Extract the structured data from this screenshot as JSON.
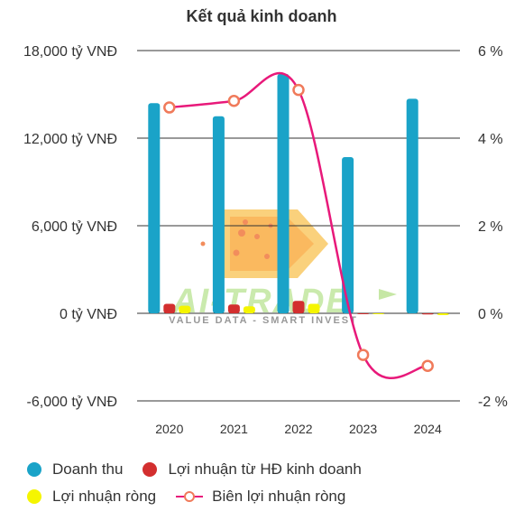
{
  "chart_data": {
    "type": "bar",
    "title": "Kết quả kinh doanh",
    "categories": [
      "2020",
      "2021",
      "2022",
      "2023",
      "2024"
    ],
    "y_left": {
      "ticks": [
        "18,000 tỷ VNĐ",
        "12,000 tỷ VNĐ",
        "6,000 tỷ VNĐ",
        "0 tỷ VNĐ",
        "-6,000 tỷ VNĐ"
      ],
      "tick_values": [
        18000,
        12000,
        6000,
        0,
        -6000
      ],
      "range": [
        -6000,
        18000
      ]
    },
    "y_right": {
      "ticks": [
        "6 %",
        "4 %",
        "2 %",
        "0 %",
        "-2 %"
      ],
      "tick_values": [
        6,
        4,
        2,
        0,
        -2
      ],
      "range": [
        -2,
        6
      ]
    },
    "grid": true,
    "legend_position": "bottom",
    "series": [
      {
        "name": "Doanh thu",
        "kind": "bar",
        "axis": "left",
        "color": "#1aa3c8",
        "values": [
          14400,
          13500,
          16400,
          10700,
          14700
        ]
      },
      {
        "name": "Lợi nhuận từ HĐ kinh doanh",
        "kind": "bar",
        "axis": "left",
        "color": "#d32f2f",
        "values": [
          650,
          600,
          850,
          -50,
          -80
        ]
      },
      {
        "name": "Lợi nhuận ròng",
        "kind": "bar",
        "axis": "left",
        "color": "#f5f500",
        "values": [
          520,
          480,
          650,
          -60,
          -120
        ]
      },
      {
        "name": "Biên lợi nhuận ròng",
        "kind": "line",
        "axis": "right",
        "color": "#e8197a",
        "marker_color": "#f07a5a",
        "values": [
          4.7,
          4.85,
          5.1,
          -0.95,
          -1.2
        ]
      }
    ]
  },
  "watermark": {
    "brand": "AI-TRADE",
    "tagline": "VALUE DATA - SMART INVEST"
  }
}
